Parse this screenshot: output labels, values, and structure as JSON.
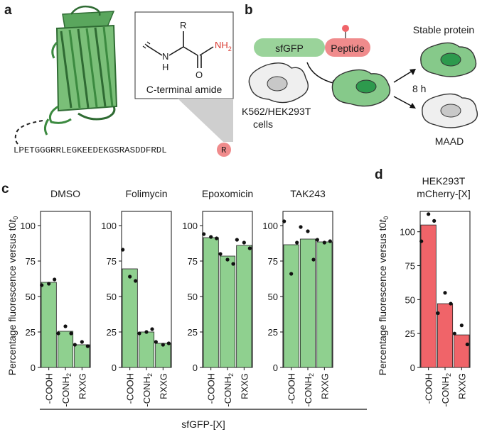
{
  "panels": {
    "a": {
      "label": "a",
      "structure": {
        "r_group": "R",
        "nh": "N",
        "h": "H",
        "o": "O",
        "nh2": "NH",
        "nh2_sub": "2",
        "caption": "C-terminal amide"
      },
      "sequence": "LPETGGGRRLEGKEEDEKGSRASDDFRDL",
      "terminal_residue": "R"
    },
    "b": {
      "label": "b",
      "sfgfp_label": "sfGFP",
      "peptide_label": "Peptide",
      "cell_line_label": "K562/HEK293T",
      "cells_label": "cells",
      "time_label": "8 h",
      "stable_label": "Stable protein",
      "maad_label": "MAAD"
    },
    "c": {
      "label": "c",
      "x_group_label": "sfGFP-[X]"
    },
    "d": {
      "label": "d",
      "title_line1": "HEK293T",
      "title_line2": "mCherry-[X]"
    }
  },
  "colors": {
    "green": "#8fd08f",
    "red": "#f06469",
    "gfp_dark": "#2d9a4d",
    "gfp_light": "#9ad39a",
    "peptide_pink": "#f08b8c"
  },
  "chart_data": [
    {
      "type": "bar",
      "panel": "c",
      "title": "DMSO",
      "categories": [
        "-COOH",
        "-CONH2",
        "RXXG"
      ],
      "ylabel": "Percentage fluorescence versus t0",
      "ylim": [
        0,
        110
      ],
      "yticks": [
        0,
        25,
        50,
        75,
        100
      ],
      "values": [
        60,
        25.5,
        16
      ],
      "points": [
        [
          58,
          59,
          62
        ],
        [
          24,
          29,
          24
        ],
        [
          16,
          18,
          15
        ]
      ]
    },
    {
      "type": "bar",
      "panel": "c",
      "title": "Folimycin",
      "categories": [
        "-COOH",
        "-CONH2",
        "RXXG"
      ],
      "ylim": [
        0,
        110
      ],
      "yticks": [
        0,
        25,
        50,
        75,
        100
      ],
      "values": [
        69.5,
        25,
        17
      ],
      "points": [
        [
          83,
          64,
          61
        ],
        [
          24,
          25,
          27
        ],
        [
          18,
          16,
          17
        ]
      ]
    },
    {
      "type": "bar",
      "panel": "c",
      "title": "Epoxomicin",
      "categories": [
        "-COOH",
        "-CONH2",
        "RXXG"
      ],
      "ylim": [
        0,
        110
      ],
      "yticks": [
        0,
        25,
        50,
        75,
        100
      ],
      "values": [
        91.5,
        78.5,
        86
      ],
      "points": [
        [
          94,
          92,
          91
        ],
        [
          80,
          76,
          73
        ],
        [
          90,
          88,
          84
        ]
      ]
    },
    {
      "type": "bar",
      "panel": "c",
      "title": "TAK243",
      "categories": [
        "-COOH",
        "-CONH2",
        "RXXG"
      ],
      "ylim": [
        0,
        110
      ],
      "yticks": [
        0,
        25,
        50,
        75,
        100
      ],
      "values": [
        86.5,
        90.5,
        88.5
      ],
      "points": [
        [
          103,
          66,
          88
        ],
        [
          99,
          96,
          76
        ],
        [
          90,
          88,
          89
        ]
      ]
    },
    {
      "type": "bar",
      "panel": "d",
      "categories": [
        "-COOH",
        "-CONH2",
        "RXXG"
      ],
      "ylabel": "Percentage fluorescence versus t0",
      "ylim": [
        0,
        115
      ],
      "yticks": [
        0,
        25,
        50,
        75,
        100
      ],
      "values": [
        105,
        47,
        24
      ],
      "points": [
        [
          93,
          113,
          108
        ],
        [
          40,
          55,
          47
        ],
        [
          25,
          31,
          17
        ]
      ]
    }
  ]
}
